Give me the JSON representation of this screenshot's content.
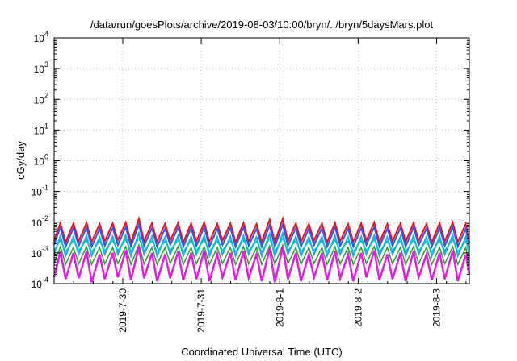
{
  "chart_data": {
    "type": "line",
    "title": "/data/run/goesPlots/archive/2019-08-03/10:00/bryn/../bryn/5daysMars.plot",
    "xlabel": "Coordinated Universal Time (UTC)",
    "ylabel": "cGy/day",
    "y_scale": "log",
    "ylim": [
      0.0001,
      10000
    ],
    "xlim": [
      "2019-07-29T03:00",
      "2019-08-03T10:00"
    ],
    "grid": true,
    "x_ticks": [
      {
        "t": "2019-07-30T00:00",
        "label": "2019-7-30"
      },
      {
        "t": "2019-07-31T00:00",
        "label": "2019-7-31"
      },
      {
        "t": "2019-08-01T00:00",
        "label": "2019-8-1"
      },
      {
        "t": "2019-08-02T00:00",
        "label": "2019-8-2"
      },
      {
        "t": "2019-08-03T00:00",
        "label": "2019-8-3"
      }
    ],
    "y_ticks": [
      {
        "v": 0.0001,
        "base": "10",
        "exp": "-4"
      },
      {
        "v": 0.001,
        "base": "10",
        "exp": "-3"
      },
      {
        "v": 0.01,
        "base": "10",
        "exp": "-2"
      },
      {
        "v": 0.1,
        "base": "10",
        "exp": "-1"
      },
      {
        "v": 1,
        "base": "10",
        "exp": "0"
      },
      {
        "v": 10,
        "base": "10",
        "exp": "1"
      },
      {
        "v": 100,
        "base": "10",
        "exp": "2"
      },
      {
        "v": 1000,
        "base": "10",
        "exp": "3"
      },
      {
        "v": 10000,
        "base": "10",
        "exp": "4"
      }
    ],
    "x": [
      "2019-07-29T03:00",
      "2019-07-29T04:56",
      "2019-07-29T06:30",
      "2019-07-29T08:55",
      "2019-07-29T10:30",
      "2019-07-29T12:55",
      "2019-07-29T14:30",
      "2019-07-29T16:55",
      "2019-07-29T18:30",
      "2019-07-29T20:55",
      "2019-07-29T22:30",
      "2019-07-30T00:55",
      "2019-07-30T02:30",
      "2019-07-30T04:55",
      "2019-07-30T06:30",
      "2019-07-30T08:55",
      "2019-07-30T10:30",
      "2019-07-30T12:55",
      "2019-07-30T14:30",
      "2019-07-30T16:55",
      "2019-07-30T18:30",
      "2019-07-30T20:55",
      "2019-07-30T22:30",
      "2019-07-31T00:55",
      "2019-07-31T02:30",
      "2019-07-31T04:55",
      "2019-07-31T06:30",
      "2019-07-31T08:55",
      "2019-07-31T10:30",
      "2019-07-31T12:55",
      "2019-07-31T14:30",
      "2019-07-31T16:55",
      "2019-07-31T18:30",
      "2019-07-31T20:55",
      "2019-07-31T22:30",
      "2019-08-01T00:55",
      "2019-08-01T02:30",
      "2019-08-01T04:55",
      "2019-08-01T06:30",
      "2019-08-01T08:55",
      "2019-08-01T10:30",
      "2019-08-01T12:55",
      "2019-08-01T14:30",
      "2019-08-01T16:55",
      "2019-08-01T18:30",
      "2019-08-01T20:55",
      "2019-08-01T22:30",
      "2019-08-02T00:55",
      "2019-08-02T02:30",
      "2019-08-02T04:55",
      "2019-08-02T06:30",
      "2019-08-02T08:55",
      "2019-08-02T10:30",
      "2019-08-02T12:55",
      "2019-08-02T14:30",
      "2019-08-02T16:55",
      "2019-08-02T18:30",
      "2019-08-02T20:55",
      "2019-08-02T22:30",
      "2019-08-03T00:55",
      "2019-08-03T02:30",
      "2019-08-03T04:55",
      "2019-08-03T06:30",
      "2019-08-03T08:55",
      "2019-08-03T10:00"
    ],
    "series": [
      {
        "color": "#e8141c",
        "width": 2,
        "values": [
          0.0025,
          0.0095,
          0.0022,
          0.0092,
          0.0024,
          0.0095,
          0.0023,
          0.0088,
          0.0024,
          0.0092,
          0.0026,
          0.0098,
          0.0022,
          0.013,
          0.0024,
          0.0092,
          0.0023,
          0.0088,
          0.0025,
          0.0095,
          0.0022,
          0.0092,
          0.0024,
          0.0098,
          0.0023,
          0.0088,
          0.0025,
          0.0092,
          0.0022,
          0.0095,
          0.0024,
          0.0088,
          0.0023,
          0.012,
          0.0022,
          0.013,
          0.0024,
          0.0092,
          0.0023,
          0.0088,
          0.0025,
          0.0092,
          0.0022,
          0.0095,
          0.0024,
          0.0088,
          0.0023,
          0.0092,
          0.0025,
          0.0098,
          0.0022,
          0.0088,
          0.0024,
          0.0092,
          0.0023,
          0.0095,
          0.0025,
          0.0088,
          0.0022,
          0.0092,
          0.0024,
          0.0098,
          0.0023,
          0.0088,
          0.0021
        ]
      },
      {
        "color": "#3a55e6",
        "width": 2,
        "values": [
          0.0018,
          0.0068,
          0.0016,
          0.0065,
          0.0017,
          0.0068,
          0.0016,
          0.0062,
          0.0017,
          0.0065,
          0.0018,
          0.007,
          0.0016,
          0.0085,
          0.0017,
          0.0065,
          0.0016,
          0.0062,
          0.0018,
          0.0068,
          0.0016,
          0.0065,
          0.0017,
          0.007,
          0.0016,
          0.0062,
          0.0018,
          0.0065,
          0.0016,
          0.0068,
          0.0017,
          0.0062,
          0.0016,
          0.008,
          0.0016,
          0.0085,
          0.0017,
          0.0065,
          0.0016,
          0.0062,
          0.0018,
          0.0065,
          0.0016,
          0.0068,
          0.0017,
          0.0062,
          0.0016,
          0.0065,
          0.0018,
          0.007,
          0.0016,
          0.0062,
          0.0017,
          0.0065,
          0.0016,
          0.0068,
          0.0018,
          0.0062,
          0.0016,
          0.0065,
          0.0017,
          0.007,
          0.0016,
          0.0062,
          0.0015
        ]
      },
      {
        "color": "#26a8e0",
        "width": 2,
        "values": [
          0.0009,
          0.0036,
          0.0008,
          0.0034,
          0.0009,
          0.0036,
          0.0008,
          0.0033,
          0.0009,
          0.0034,
          0.0009,
          0.0037,
          0.0008,
          0.0044,
          0.0009,
          0.0034,
          0.0008,
          0.0033,
          0.0009,
          0.0036,
          0.0008,
          0.0034,
          0.0009,
          0.0037,
          0.0008,
          0.0033,
          0.0009,
          0.0034,
          0.0008,
          0.0036,
          0.0009,
          0.0033,
          0.0008,
          0.0042,
          0.0008,
          0.0044,
          0.0009,
          0.0034,
          0.0008,
          0.0033,
          0.0009,
          0.0034,
          0.0008,
          0.0036,
          0.0009,
          0.0033,
          0.0008,
          0.0034,
          0.0009,
          0.0037,
          0.0008,
          0.0033,
          0.0009,
          0.0034,
          0.0008,
          0.0036,
          0.0009,
          0.0033,
          0.0008,
          0.0034,
          0.0009,
          0.0037,
          0.0008,
          0.0033,
          0.00075
        ]
      },
      {
        "color": "#00c8c8",
        "width": 1.5,
        "values": [
          0.0012,
          0.0026,
          0.0011,
          0.0025,
          0.0012,
          0.0026,
          0.0011,
          0.0024,
          0.0012,
          0.0025,
          0.0012,
          0.0027,
          0.0011,
          0.003,
          0.0012,
          0.0025,
          0.0011,
          0.0024,
          0.0012,
          0.0026,
          0.0011,
          0.0025,
          0.0012,
          0.0027,
          0.0011,
          0.0024,
          0.0012,
          0.0025,
          0.0011,
          0.0026,
          0.0012,
          0.0024,
          0.0011,
          0.0029,
          0.0011,
          0.003,
          0.0012,
          0.0025,
          0.0011,
          0.0024,
          0.0012,
          0.0025,
          0.0011,
          0.0026,
          0.0012,
          0.0024,
          0.0011,
          0.0025,
          0.0012,
          0.0027,
          0.0011,
          0.0024,
          0.0012,
          0.0025,
          0.0011,
          0.0026,
          0.0012,
          0.0024,
          0.0011,
          0.0025,
          0.0012,
          0.0027,
          0.0011,
          0.0024,
          0.0011
        ]
      },
      {
        "color": "#2ca02c",
        "width": 1.5,
        "values": [
          0.00045,
          0.0016,
          0.00042,
          0.0015,
          0.00044,
          0.0016,
          0.00042,
          0.0015,
          0.00044,
          0.0015,
          0.00045,
          0.0016,
          0.00042,
          0.0018,
          0.00044,
          0.0015,
          0.00042,
          0.0015,
          0.00045,
          0.0016,
          0.00042,
          0.0015,
          0.00044,
          0.0016,
          0.00042,
          0.0015,
          0.00045,
          0.0015,
          0.00042,
          0.0016,
          0.00044,
          0.0015,
          0.00042,
          0.0017,
          0.00042,
          0.0018,
          0.00044,
          0.0015,
          0.00042,
          0.0015,
          0.00045,
          0.0015,
          0.00042,
          0.0016,
          0.00044,
          0.0015,
          0.00042,
          0.0015,
          0.00045,
          0.0016,
          0.00042,
          0.0015,
          0.00044,
          0.0015,
          0.00042,
          0.0016,
          0.00045,
          0.0015,
          0.00042,
          0.0015,
          0.00044,
          0.0016,
          0.00042,
          0.0015,
          0.0004
        ]
      },
      {
        "color": "#e21ee0",
        "width": 2.5,
        "values": [
          0.00016,
          0.0011,
          0.00014,
          0.001,
          0.00015,
          0.0011,
          0.00011,
          0.0009,
          0.00014,
          0.001,
          0.00016,
          0.0012,
          0.00013,
          0.0016,
          0.00015,
          0.001,
          0.00012,
          0.0009,
          0.00015,
          0.0011,
          0.00013,
          0.001,
          0.00014,
          0.0012,
          0.00012,
          0.0009,
          0.00016,
          0.001,
          0.00013,
          0.0011,
          0.00015,
          0.0009,
          0.00012,
          0.0014,
          0.00011,
          0.0016,
          0.00014,
          0.001,
          0.00012,
          0.0009,
          0.00016,
          0.001,
          0.00013,
          0.0011,
          0.00015,
          0.0009,
          0.00012,
          0.001,
          0.00016,
          0.0012,
          0.00013,
          0.0009,
          0.00014,
          0.001,
          0.00012,
          0.0011,
          0.00016,
          0.0009,
          0.00013,
          0.001,
          0.00014,
          0.0012,
          0.00012,
          0.0009,
          0.0002
        ]
      }
    ]
  }
}
